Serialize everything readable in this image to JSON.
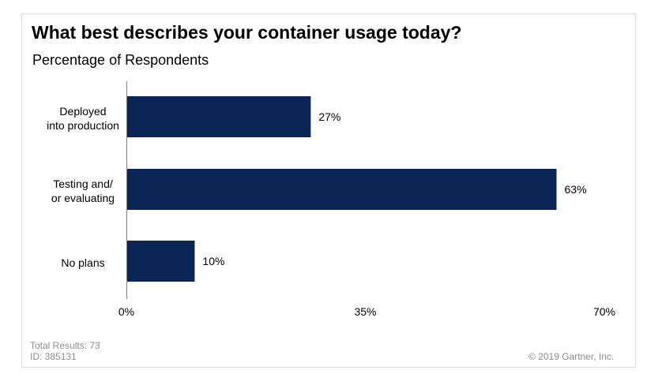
{
  "colors": {
    "bar": "#0b2556",
    "axis": "#7f7f7f",
    "footer_text": "#8c8c8c"
  },
  "chart_data": {
    "type": "bar",
    "orientation": "horizontal",
    "title": "What best describes your container usage today?",
    "subtitle": "Percentage of Respondents",
    "categories": [
      [
        "Deployed",
        "into production"
      ],
      [
        "Testing and/",
        "or evaluating"
      ],
      [
        "No plans"
      ]
    ],
    "values": [
      27,
      63,
      10
    ],
    "data_labels": [
      "27%",
      "63%",
      "10%"
    ],
    "xlim": [
      0,
      70
    ],
    "ticks": [
      0,
      35,
      70
    ],
    "tick_labels": [
      "0%",
      "35%",
      "70%"
    ],
    "grid": false,
    "legend": "none"
  },
  "footer": {
    "total_results": "Total Results: 73",
    "id": "ID: 385131",
    "copyright": "© 2019 Gartner, Inc."
  }
}
